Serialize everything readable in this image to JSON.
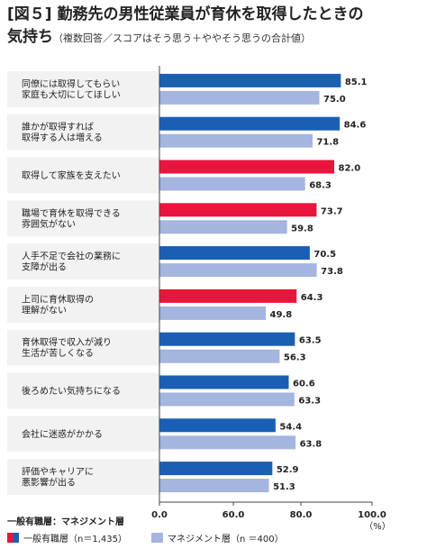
{
  "title": {
    "line1": "[図５] 勤務先の男性従業員が育休を取得したときの",
    "line2": "気持ち",
    "note": "（複数回答／スコアはそう思う＋ややそう思うの合計値）"
  },
  "chart_data": {
    "type": "bar",
    "orientation": "horizontal",
    "categories": [
      [
        "同僚には取得してもらい",
        "家庭も大切にしてほしい"
      ],
      [
        "誰かが取得すれば",
        "取得する人は増える"
      ],
      [
        "取得して家族を支えたい"
      ],
      [
        "職場で育休を取得できる",
        "雰囲気がない"
      ],
      [
        "人手不足で会社の業務に",
        "支障が出る"
      ],
      [
        "上司に育休取得の",
        "理解がない"
      ],
      [
        "育休取得で収入が減り",
        "生活が苦しくなる"
      ],
      [
        "後ろめたい気持ちになる"
      ],
      [
        "会社に迷惑がかかる"
      ],
      [
        "評価やキャリアに",
        "悪影響が出る"
      ]
    ],
    "series": [
      {
        "name": "一般有職層（n＝1,435）",
        "values": [
          85.1,
          84.6,
          82.0,
          73.7,
          70.5,
          64.3,
          63.5,
          60.6,
          54.4,
          52.9
        ]
      },
      {
        "name": "マネジメント層（n ＝400）",
        "values": [
          75.0,
          71.8,
          68.3,
          59.8,
          73.8,
          49.8,
          56.3,
          63.3,
          63.8,
          51.3
        ]
      }
    ],
    "general_colors": [
      "#1a5fb4",
      "#1a5fb4",
      "#e8163c",
      "#e8163c",
      "#1a5fb4",
      "#e8163c",
      "#1a5fb4",
      "#1a5fb4",
      "#1a5fb4",
      "#1a5fb4"
    ],
    "manager_color": "#a4b5e0",
    "xlim": [
      0,
      100
    ],
    "xticks": [
      "0.0",
      "60.0",
      "80.0",
      "100.0"
    ],
    "xunit": "（%）",
    "grid": false
  },
  "legend": {
    "note": "一般有職層：マネジメント層",
    "general_label": "一般有職層（n＝1,435）",
    "manager_label": "マネジメント層（n ＝400）"
  }
}
